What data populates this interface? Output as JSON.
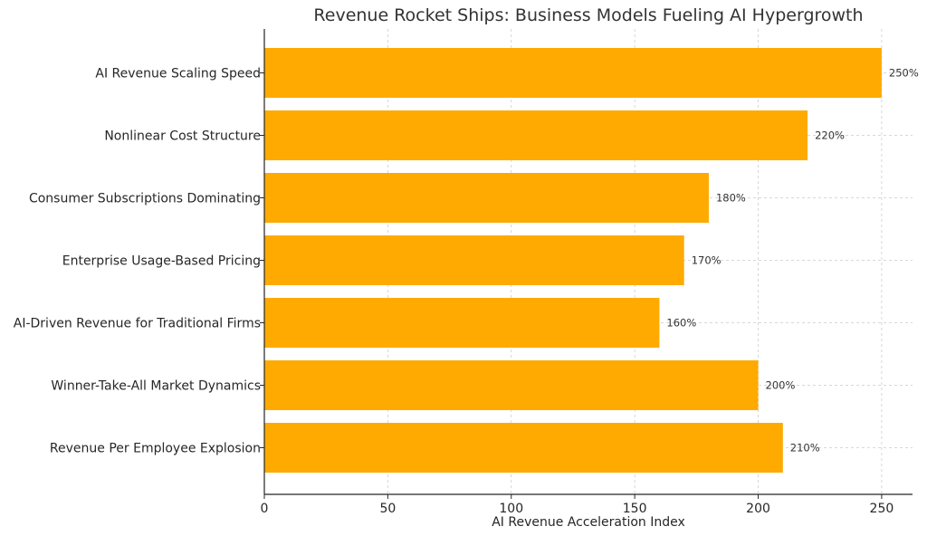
{
  "chart_data": {
    "type": "bar",
    "orientation": "horizontal",
    "title": "Revenue Rocket Ships: Business Models Fueling AI Hypergrowth",
    "xlabel": "AI Revenue Acceleration Index",
    "ylabel": "",
    "categories": [
      "AI Revenue Scaling Speed",
      "Nonlinear Cost Structure",
      "Consumer Subscriptions Dominating",
      "Enterprise Usage-Based Pricing",
      "AI-Driven Revenue for Traditional Firms",
      "Winner-Take-All Market Dynamics",
      "Revenue Per Employee Explosion"
    ],
    "values": [
      250,
      220,
      180,
      170,
      160,
      200,
      210
    ],
    "data_labels": [
      "250%",
      "220%",
      "180%",
      "170%",
      "160%",
      "200%",
      "210%"
    ],
    "xlim": [
      0,
      262.5
    ],
    "xticks": [
      0,
      50,
      100,
      150,
      200,
      250
    ],
    "xtick_labels": [
      "0",
      "50",
      "100",
      "150",
      "200",
      "250"
    ],
    "grid": true,
    "bar_color": "#FFAA00"
  }
}
